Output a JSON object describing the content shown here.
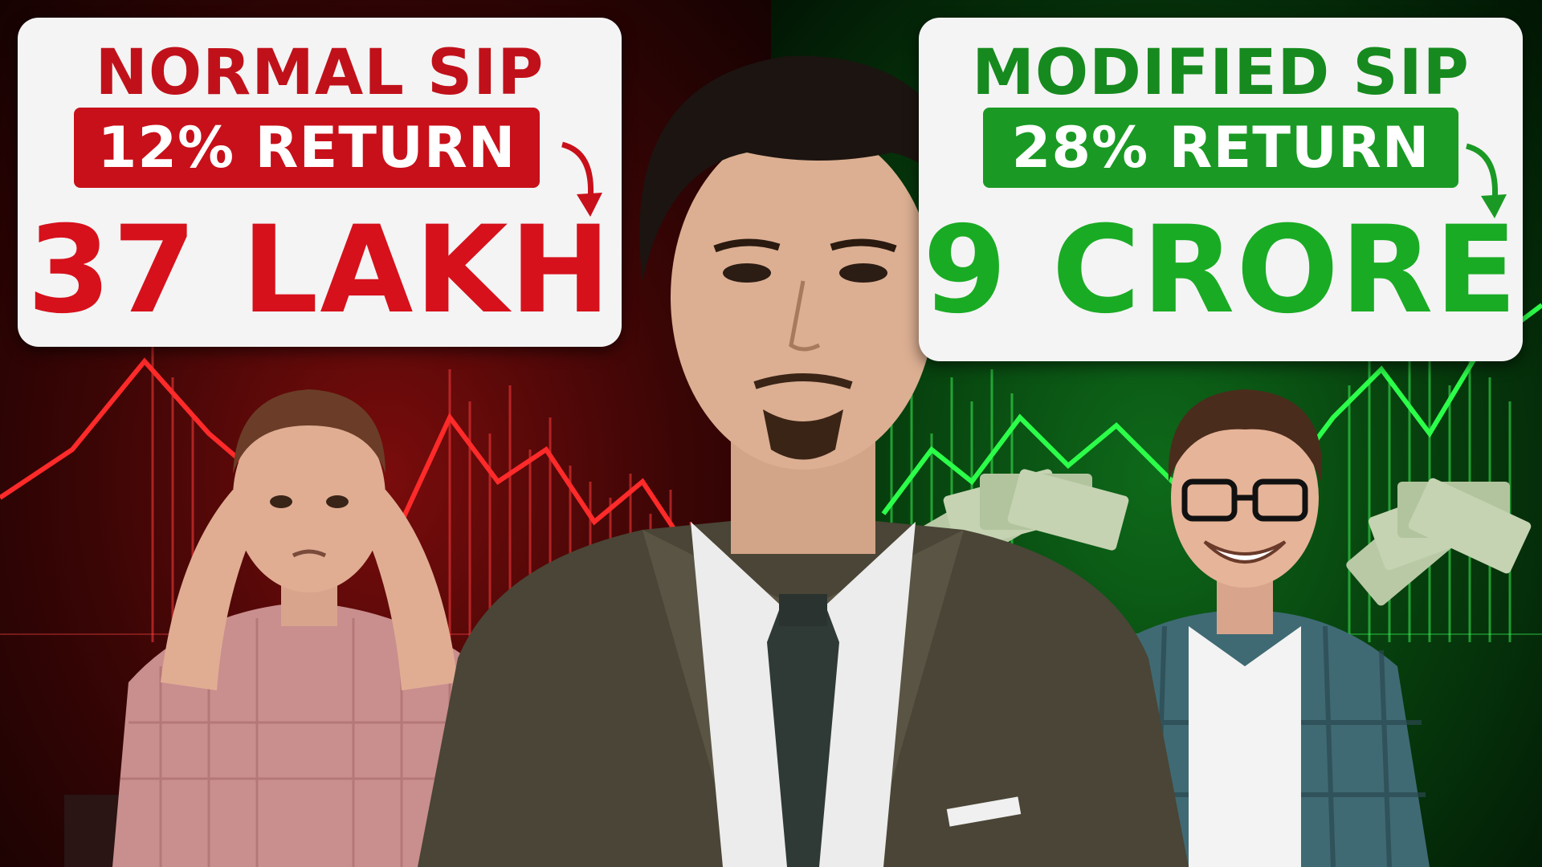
{
  "left_card": {
    "title": "NORMAL SIP",
    "return_label": "12% RETURN",
    "value": "37 LAKH",
    "accent": "#c8101a"
  },
  "right_card": {
    "title": "MODIFIED SIP",
    "return_label": "28% RETURN",
    "value": "9 CRORE",
    "accent": "#1a9a24"
  },
  "icons": {
    "left_arrow": "curved-arrow-down-icon",
    "right_arrow": "curved-arrow-down-icon"
  }
}
